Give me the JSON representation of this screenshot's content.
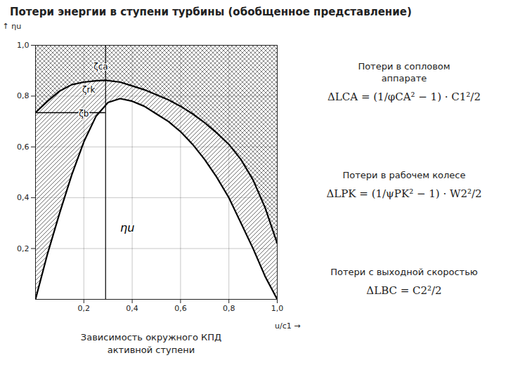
{
  "chart_data": {
    "type": "line",
    "title": "Потери энергии в ступени турбины (обобщенное представление)",
    "subtitle": "Зависимость окружного КПД\nактивной ступени",
    "x_label": "u/c1",
    "y_label": "ηu",
    "series": [
      {
        "x": [
          0.0,
          0.05,
          0.1,
          0.15,
          0.2,
          0.25,
          0.3,
          0.35,
          0.4,
          0.45,
          0.5,
          0.55,
          0.6,
          0.65,
          0.7,
          0.75,
          0.8,
          0.85,
          0.9,
          0.95,
          1.0
        ],
        "values": [
          0.0,
          0.18,
          0.34,
          0.49,
          0.62,
          0.72,
          0.775,
          0.79,
          0.78,
          0.76,
          0.73,
          0.7,
          0.66,
          0.61,
          0.55,
          0.48,
          0.4,
          0.3,
          0.2,
          0.09,
          0.0
        ],
        "color": "#000000"
      },
      {
        "x": [
          0.0,
          0.05,
          0.1,
          0.15,
          0.2,
          0.25,
          0.29,
          0.35,
          0.4,
          0.45,
          0.5,
          0.55,
          0.6,
          0.65,
          0.7,
          0.75,
          0.8,
          0.85,
          0.9,
          0.95,
          1.0
        ],
        "values": [
          0.735,
          0.78,
          0.82,
          0.845,
          0.855,
          0.86,
          0.862,
          0.855,
          0.84,
          0.825,
          0.805,
          0.785,
          0.76,
          0.73,
          0.695,
          0.655,
          0.61,
          0.55,
          0.47,
          0.36,
          0.22
        ],
        "color": "#000000"
      }
    ],
    "opt_x": 0.29,
    "left_y": 0.735,
    "xlim": [
      0,
      1.0
    ],
    "ylim": [
      0,
      1.0
    ],
    "xticks": [
      {
        "value": 0.2,
        "label": "0,2"
      },
      {
        "value": 0.4,
        "label": "0,4"
      },
      {
        "value": 0.6,
        "label": "0,6"
      },
      {
        "value": 0.8,
        "label": "0,8"
      },
      {
        "value": 1.0,
        "label": "1,0"
      }
    ],
    "yticks": [
      {
        "value": 0.2,
        "label": "0,2"
      },
      {
        "value": 0.4,
        "label": "0,4"
      },
      {
        "value": 0.6,
        "label": "0,6"
      },
      {
        "value": 0.8,
        "label": "0,8"
      },
      {
        "value": 1.0,
        "label": "1,0"
      }
    ],
    "grid": true,
    "annotations": [
      {
        "text": "ηu",
        "x": 0.38,
        "y": 0.28
      },
      {
        "text": "ζca",
        "x": 0.27,
        "y": 0.915
      },
      {
        "text": "ζrk",
        "x": 0.22,
        "y": 0.825
      },
      {
        "text": "ζb",
        "x": 0.2,
        "y": 0.73
      }
    ],
    "panel": [
      {
        "text": "Потери в сопловом\nаппарате",
        "formula": "ΔLCA = (1/φCA² − 1) · C1²/2"
      },
      {
        "text": "Потери в рабочем колесе",
        "formula": "ΔLPK = (1/ψPK² − 1) · W2²/2"
      },
      {
        "text": "Потери с выходной скоростью",
        "formula": "ΔLBC = C2²/2"
      }
    ]
  }
}
